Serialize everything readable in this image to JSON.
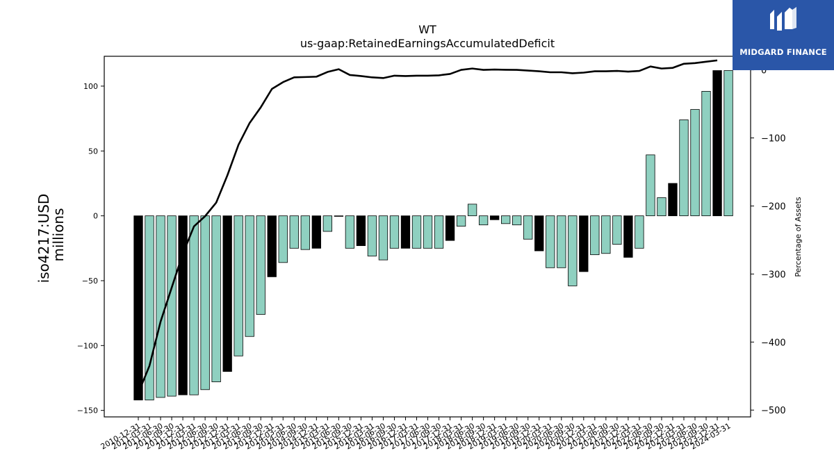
{
  "chart_data": {
    "type": "bar",
    "title": "WT",
    "subtitle": "us-gaap:RetainedEarningsAccumulatedDeficit",
    "ylabel": "iso4217:USD\nmillions",
    "y2label": "Percentage of Assets",
    "ylim": [
      -155,
      123
    ],
    "y2lim": [
      -510,
      20
    ],
    "yticks": [
      -150,
      -100,
      -50,
      0,
      50,
      100
    ],
    "y2ticks": [
      -500,
      -400,
      -300,
      -200,
      -100,
      0
    ],
    "categories": [
      "2010-12-31",
      "2011-03-31",
      "2011-06-30",
      "2011-09-30",
      "2011-12-31",
      "2012-03-31",
      "2012-06-30",
      "2012-09-30",
      "2012-12-31",
      "2013-03-31",
      "2013-06-30",
      "2013-09-30",
      "2013-12-31",
      "2014-03-31",
      "2014-06-30",
      "2014-09-30",
      "2014-12-31",
      "2015-03-31",
      "2015-06-30",
      "2015-09-30",
      "2015-12-31",
      "2016-03-31",
      "2016-06-30",
      "2016-09-30",
      "2016-12-31",
      "2017-03-31",
      "2017-06-30",
      "2017-09-30",
      "2017-12-31",
      "2018-03-31",
      "2018-06-30",
      "2018-09-30",
      "2018-12-31",
      "2019-03-31",
      "2019-06-30",
      "2019-09-30",
      "2019-12-31",
      "2020-03-31",
      "2020-06-30",
      "2020-09-30",
      "2020-12-31",
      "2021-03-31",
      "2021-06-30",
      "2021-09-30",
      "2021-12-31",
      "2022-03-31",
      "2022-06-30",
      "2022-09-30",
      "2022-12-31",
      "2023-03-31",
      "2023-06-30",
      "2023-09-30",
      "2023-12-31",
      "2024-03-31"
    ],
    "series": [
      {
        "values": [
          -142,
          -142,
          -140,
          -139,
          -138,
          -138,
          -134,
          -128,
          -120,
          -108,
          -93,
          -76,
          -47,
          -36,
          -25,
          -26,
          -25,
          -12,
          0,
          -25,
          -23,
          -31,
          -34,
          -25,
          -25,
          -25,
          -25,
          -25,
          -19,
          -8,
          9,
          -7,
          -3,
          -6,
          -7,
          -18,
          -27,
          -40,
          -40,
          -54,
          -43,
          -30,
          -29,
          -22,
          -32,
          -25,
          47,
          14,
          25,
          74,
          82,
          96,
          112,
          112
        ],
        "annual": [
          true,
          false,
          false,
          false,
          true,
          false,
          false,
          false,
          true,
          false,
          false,
          false,
          true,
          false,
          false,
          false,
          true,
          false,
          false,
          false,
          true,
          false,
          false,
          false,
          true,
          false,
          false,
          false,
          true,
          false,
          false,
          false,
          true,
          false,
          false,
          false,
          true,
          false,
          false,
          false,
          true,
          false,
          false,
          false,
          true,
          false,
          false,
          false,
          true,
          false,
          false,
          false,
          true,
          false
        ]
      },
      {
        "axis": "right",
        "values": [
          -475,
          -435,
          -370,
          -320,
          -270,
          -230,
          -215,
          -195,
          -155,
          -110,
          -78,
          -55,
          -28,
          -18,
          -11,
          -10.5,
          -10,
          -3,
          1,
          -7.5,
          -9,
          -11,
          -12,
          -8.5,
          -9,
          -8.5,
          -8.5,
          -8,
          -6,
          0,
          2,
          0,
          0.5,
          0.2,
          0,
          -1,
          -2,
          -3.5,
          -3.5,
          -5,
          -4,
          -2,
          -2,
          -1.5,
          -2.5,
          -1.5,
          5,
          2,
          3,
          9,
          10,
          12,
          14,
          null
        ]
      }
    ],
    "colors": {
      "quarterly_bar": "#8fd0c0",
      "annual_bar": "#000000",
      "line": "#000000"
    },
    "grid": false,
    "legend": "none"
  },
  "logo": {
    "text": "MIDGARD FINANCE",
    "bg": "#2a56a8"
  }
}
